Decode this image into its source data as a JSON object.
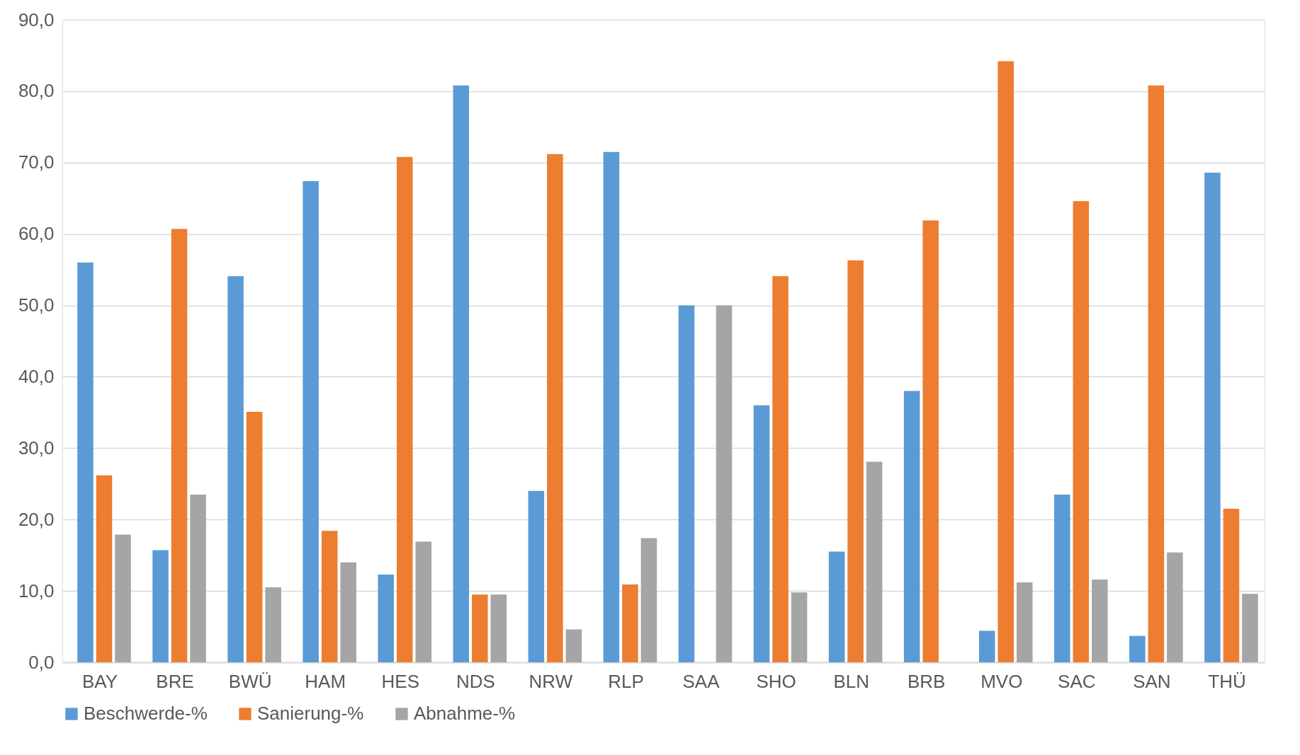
{
  "chart_data": {
    "type": "bar",
    "categories": [
      "BAY",
      "BRE",
      "BWÜ",
      "HAM",
      "HES",
      "NDS",
      "NRW",
      "RLP",
      "SAA",
      "SHO",
      "BLN",
      "BRB",
      "MVO",
      "SAC",
      "SAN",
      "THÜ"
    ],
    "series": [
      {
        "name": "Beschwerde-%",
        "color": "#5b9bd5",
        "values": [
          56.0,
          15.7,
          54.1,
          67.4,
          12.3,
          80.8,
          24.0,
          71.5,
          50.0,
          36.0,
          15.5,
          38.0,
          4.4,
          23.5,
          3.7,
          68.6
        ]
      },
      {
        "name": "Sanierung-%",
        "color": "#ed7d31",
        "values": [
          26.2,
          60.7,
          35.1,
          18.4,
          70.8,
          9.5,
          71.2,
          10.9,
          0,
          54.1,
          56.3,
          61.9,
          84.2,
          64.6,
          80.8,
          21.5
        ]
      },
      {
        "name": "Abnahme-%",
        "color": "#a5a5a5",
        "values": [
          17.9,
          23.5,
          10.5,
          14.0,
          16.9,
          9.5,
          4.6,
          17.4,
          50.0,
          9.8,
          28.1,
          0,
          11.2,
          11.6,
          15.4,
          9.6
        ]
      }
    ],
    "ylim": [
      0,
      90
    ],
    "yticks": [
      {
        "value": 0,
        "label": "0,0"
      },
      {
        "value": 10,
        "label": "10,0"
      },
      {
        "value": 20,
        "label": "20,0"
      },
      {
        "value": 30,
        "label": "30,0"
      },
      {
        "value": 40,
        "label": "40,0"
      },
      {
        "value": 50,
        "label": "50,0"
      },
      {
        "value": 60,
        "label": "60,0"
      },
      {
        "value": 70,
        "label": "70,0"
      },
      {
        "value": 80,
        "label": "80,0"
      },
      {
        "value": 90,
        "label": "90,0"
      }
    ],
    "grid": "y",
    "legend": "bottom"
  }
}
